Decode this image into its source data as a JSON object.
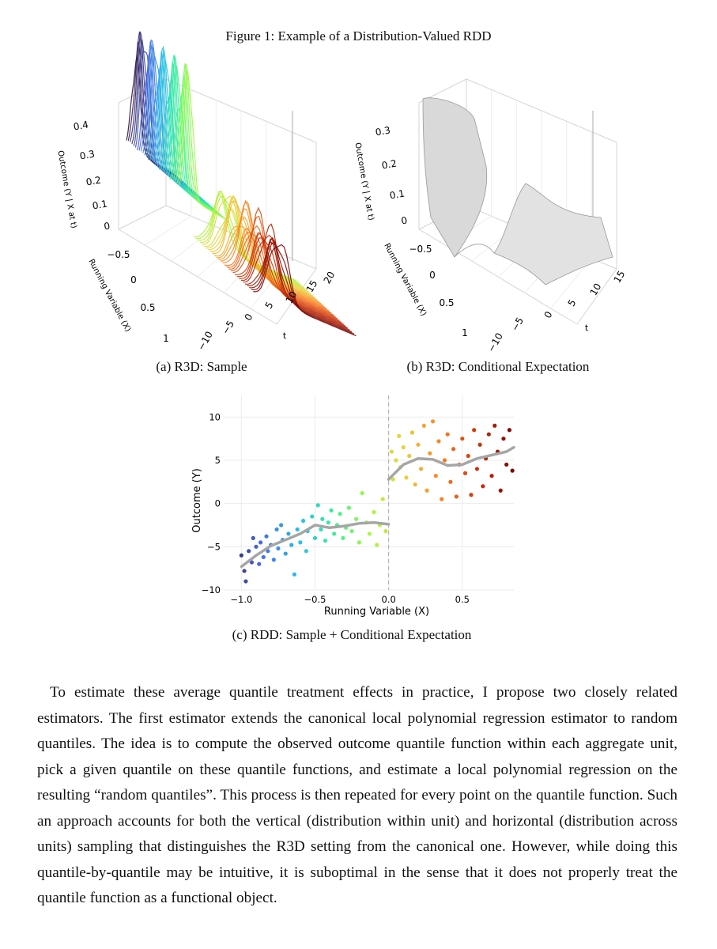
{
  "figure_title": "Figure 1: Example of a Distribution-Valued RDD",
  "panel_a": {
    "caption": "(a) R3D: Sample",
    "z_title": "Outcome (Y | X at t)",
    "x_title": "Running Variable (X)",
    "t_title": "t",
    "z_ticks": [
      "0.4",
      "0.3",
      "0.2",
      "0.1",
      "0"
    ],
    "x_ticks": [
      "−0.5",
      "0",
      "0.5",
      "1"
    ],
    "t_ticks": [
      "−10",
      "−5",
      "0",
      "5",
      "10",
      "15",
      "20"
    ]
  },
  "panel_b": {
    "caption": "(b) R3D: Conditional Expectation",
    "z_title": "Outcome (Y | X at t)",
    "x_title": "Running Variable (X)",
    "t_title": "t",
    "z_ticks": [
      "0.3",
      "0.2",
      "0.1",
      "0"
    ],
    "x_ticks": [
      "−0.5",
      "0",
      "0.5",
      "1"
    ],
    "t_ticks": [
      "−10",
      "−5",
      "0",
      "5",
      "10",
      "15"
    ]
  },
  "chart_data": {
    "type": "scatter",
    "x_label": "Running Variable (X)",
    "y_label": "Outcome (Y)",
    "xlim": [
      -1.12,
      0.85
    ],
    "ylim": [
      -10,
      12.5
    ],
    "xticks": [
      {
        "value": -1.0,
        "label": "−1.0"
      },
      {
        "value": -0.5,
        "label": "−0.5"
      },
      {
        "value": 0.0,
        "label": "0.0"
      },
      {
        "value": 0.5,
        "label": "0.5"
      }
    ],
    "yticks": [
      {
        "value": -10,
        "label": "−10"
      },
      {
        "value": -5,
        "label": "−5"
      },
      0,
      5,
      10
    ],
    "grid": true,
    "colormap": "turbo",
    "cutoff": 0,
    "points": {
      "x": [
        -1.0,
        -0.98,
        -0.97,
        -0.95,
        -0.93,
        -0.92,
        -0.9,
        -0.88,
        -0.87,
        -0.85,
        -0.83,
        -0.82,
        -0.8,
        -0.78,
        -0.76,
        -0.75,
        -0.73,
        -0.72,
        -0.7,
        -0.68,
        -0.66,
        -0.64,
        -0.62,
        -0.6,
        -0.58,
        -0.56,
        -0.55,
        -0.52,
        -0.5,
        -0.48,
        -0.46,
        -0.45,
        -0.43,
        -0.41,
        -0.39,
        -0.37,
        -0.35,
        -0.33,
        -0.31,
        -0.29,
        -0.27,
        -0.25,
        -0.22,
        -0.2,
        -0.18,
        -0.15,
        -0.13,
        -0.1,
        -0.08,
        -0.06,
        -0.04,
        -0.02,
        0.02,
        0.03,
        0.05,
        0.07,
        0.08,
        0.1,
        0.12,
        0.14,
        0.16,
        0.18,
        0.2,
        0.22,
        0.24,
        0.26,
        0.28,
        0.3,
        0.32,
        0.34,
        0.36,
        0.38,
        0.4,
        0.42,
        0.44,
        0.46,
        0.48,
        0.5,
        0.52,
        0.54,
        0.56,
        0.58,
        0.6,
        0.62,
        0.64,
        0.66,
        0.68,
        0.7,
        0.72,
        0.74,
        0.76,
        0.78,
        0.8,
        0.82,
        0.84
      ],
      "y": [
        -6,
        -7.8,
        -9,
        -5.5,
        -6.8,
        -4,
        -5,
        -7,
        -4.5,
        -6.2,
        -3.8,
        -5.5,
        -4.8,
        -6.5,
        -3,
        -5.2,
        -2.5,
        -4.2,
        -5.8,
        -3.5,
        -4.8,
        -8.2,
        -3,
        -4.5,
        -2,
        -5.5,
        -3.2,
        -1.5,
        -4,
        -0.2,
        -3,
        -1.8,
        -4.3,
        -2.2,
        -0.8,
        -3.5,
        -2.5,
        -1.2,
        -4,
        -2.8,
        -0.5,
        -3.2,
        -1.8,
        -4.5,
        1.2,
        -2.2,
        -3.5,
        -1,
        -4.8,
        -2.5,
        0.5,
        -3.2,
        6,
        2.8,
        5,
        7.8,
        4.2,
        6.5,
        3,
        5.5,
        8.2,
        2.2,
        6.8,
        4,
        9,
        1.5,
        5.8,
        9.5,
        3.2,
        7.2,
        0.5,
        5,
        8,
        2.5,
        6.3,
        0.8,
        4.5,
        7.5,
        3.5,
        5.5,
        1,
        8.5,
        4,
        6.8,
        2,
        5.2,
        8,
        3.2,
        9,
        6,
        1.5,
        7.5,
        4.5,
        8.5,
        3.8
      ]
    },
    "fit": {
      "color": "#a6a6a6",
      "x": [
        -1,
        -0.9,
        -0.8,
        -0.7,
        -0.6,
        -0.5,
        -0.4,
        -0.3,
        -0.2,
        -0.1,
        0,
        null,
        0,
        0.1,
        0.2,
        0.3,
        0.4,
        0.5,
        0.6,
        0.7,
        0.8,
        0.85
      ],
      "y": [
        -7.3,
        -6,
        -4.9,
        -4.2,
        -3.5,
        -2.5,
        -2.8,
        -2.6,
        -2.3,
        -2.2,
        -2.4,
        null,
        2.8,
        4.5,
        5.2,
        5.1,
        4.4,
        4.5,
        5.2,
        5.6,
        6,
        6.5
      ]
    }
  },
  "caption_c": "(c) RDD: Sample + Conditional Expectation",
  "paragraph": "To estimate these average quantile treatment effects in practice, I propose two closely related estimators. The first estimator extends the canonical local polynomial regression estimator to random quantiles. The idea is to compute the observed outcome quantile function within each aggregate unit, pick a given quantile on these quantile functions, and estimate a local polynomial regression on the resulting “random quantiles”. This process is then repeated for every point on the quantile function. Such an approach accounts for both the vertical (distribution within unit) and horizontal (distribution across units) sampling that distinguishes the R3D setting from the canonical one. However, while doing this quantile-by-quantile may be intuitive, it is suboptimal in the sense that it does not properly treat the quantile function as a functional object."
}
